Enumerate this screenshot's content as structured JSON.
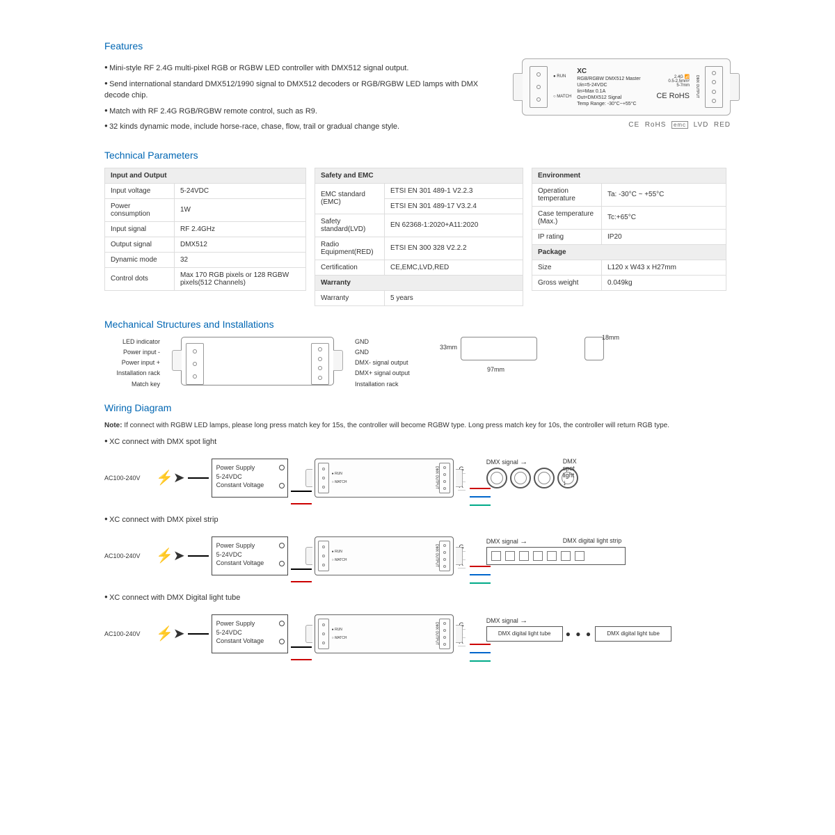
{
  "headings": {
    "features": "Features",
    "technical": "Technical Parameters",
    "mechanical": "Mechanical Structures and Installations",
    "wiring": "Wiring Diagram"
  },
  "features": [
    "Mini-style RF 2.4G multi-pixel RGB or RGBW LED controller with DMX512 signal output.",
    "Send international standard DMX512/1990 signal to DMX512 decoders or RGB/RGBW LED lamps with DMX decode chip.",
    "Match with RF 2.4G RGB/RGBW remote control, such as R9.",
    "32 kinds dynamic mode, include horse-race, chase, flow, trail or gradual change style."
  ],
  "product": {
    "model": "XC",
    "subtitle": "RGB/RGBW DMX512 Master",
    "specs": "Uin=5-24VDC\nIin=Max 0.1A\nOut=DMX512 Signal\nTemp Range: -30°C~+55°C",
    "marks": "CE RoHS",
    "side_left": "RUN\nMATCH",
    "side_right": "DMX OUTPUT\nD+ D- GND GND",
    "rf": "2.4G",
    "dip": "0.5-2.5mm²\n5-7mm"
  },
  "cert_line": "CE  RoHS  emc  LVD  RED",
  "tables": {
    "io": {
      "header": "Input and Output",
      "rows": [
        [
          "Input voltage",
          "5-24VDC"
        ],
        [
          "Power consumption",
          "1W"
        ],
        [
          "Input signal",
          "RF 2.4GHz"
        ],
        [
          "Output signal",
          "DMX512"
        ],
        [
          "Dynamic mode",
          "32"
        ],
        [
          "Control dots",
          "Max 170 RGB pixels or 128 RGBW pixels(512 Channels)"
        ]
      ]
    },
    "safety": {
      "header": "Safety and EMC",
      "rows": [
        [
          "EMC standard (EMC)",
          "ETSI EN 301 489-1 V2.2.3"
        ],
        [
          "",
          "ETSI EN 301 489-17 V3.2.4"
        ],
        [
          "Safety standard(LVD)",
          "EN 62368-1:2020+A11:2020"
        ],
        [
          "Radio Equipment(RED)",
          "ETSI EN 300 328 V2.2.2"
        ],
        [
          "Certification",
          "CE,EMC,LVD,RED"
        ]
      ],
      "warranty_header": "Warranty",
      "warranty": [
        "Warranty",
        "5 years"
      ]
    },
    "env": {
      "header": "Environment",
      "rows": [
        [
          "Operation temperature",
          "Ta: -30°C ~ +55°C"
        ],
        [
          "Case temperature (Max.)",
          "Tc:+65°C"
        ],
        [
          "IP rating",
          "IP20"
        ]
      ],
      "package_header": "Package",
      "package": [
        [
          "Size",
          "L120 x W43 x H27mm"
        ],
        [
          "Gross weight",
          "0.049kg"
        ]
      ]
    }
  },
  "mechanical": {
    "labels_left": [
      "LED indicator",
      "Power input -",
      "Power input +",
      "Installation rack",
      "Match key"
    ],
    "labels_right": [
      "GND",
      "GND",
      "DMX- signal output",
      "DMX+ signal output",
      "Installation rack"
    ],
    "dim_h": "33mm",
    "dim_w": "97mm",
    "dim_t": "18mm"
  },
  "wiring": {
    "note": "If connect with RGBW LED lamps, please long press match key for 15s, the controller will become RGBW type. Long press match key for 10s, the controller will return RGB type.",
    "note_label": "Note:",
    "ac": "AC100-240V",
    "ps": "Power Supply\n5-24VDC\nConstant Voltage",
    "gba": [
      "G",
      "B",
      "A"
    ],
    "items": [
      {
        "title": "XC connect with DMX spot light",
        "out1": "DMX signal",
        "out2": "DMX spot light",
        "type": "spot"
      },
      {
        "title": "XC connect with DMX pixel strip",
        "out1": "DMX signal",
        "out2": "DMX digital light strip",
        "type": "strip"
      },
      {
        "title": "XC connect with DMX Digital light tube",
        "out1": "DMX signal",
        "out2": "",
        "type": "tube",
        "tube_label": "DMX digital light tube"
      }
    ]
  },
  "colors": {
    "heading": "#0066b3",
    "text": "#333333",
    "border": "#dddddd",
    "header_bg": "#eeeeee",
    "wire_red": "#cc0000"
  }
}
